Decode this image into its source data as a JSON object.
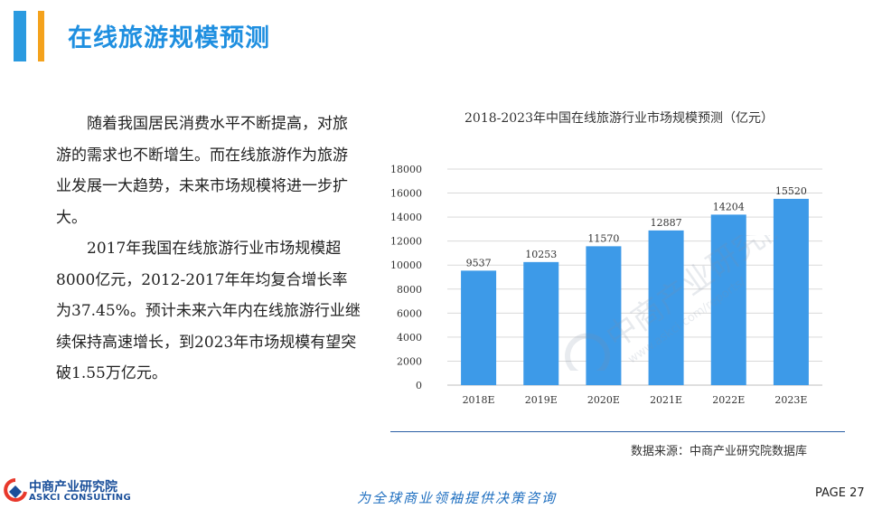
{
  "header": {
    "title": "在线旅游规模预测"
  },
  "body": {
    "paragraphs": [
      "随着我国居民消费水平不断提高，对旅游的需求也不断增生。而在线旅游作为旅游业发展一大趋势，未来市场规模将进一步扩大。",
      "2017年我国在线旅游行业市场规模超8000亿元，2012-2017年年均复合增长率为37.45%。预计未来六年内在线旅游行业继续保持高速增长，到2023年市场规模有望突破1.55万亿元。"
    ]
  },
  "chart_data": {
    "type": "bar",
    "title": "2018-2023年中国在线旅游行业市场规模预测（亿元）",
    "categories": [
      "2018E",
      "2019E",
      "2020E",
      "2021E",
      "2022E",
      "2023E"
    ],
    "values": [
      9537,
      10253,
      11570,
      12887,
      14204,
      15520
    ],
    "yticks": [
      0,
      2000,
      4000,
      6000,
      8000,
      10000,
      12000,
      14000,
      16000,
      18000
    ],
    "ylim": [
      0,
      18000
    ],
    "grid": true,
    "bar_color": "#3d9ae8",
    "data_labels": true
  },
  "source": "数据来源：中商产业研究院数据库",
  "watermark": {
    "text": "中商产业研究院",
    "url_text": "www.askci.com/reports/"
  },
  "footer": {
    "logo_cn": "中商产业研究院",
    "logo_en": "ASKCI CONSULTING",
    "slogan": "为全球商业领袖提供决策咨询",
    "page": "PAGE  27"
  },
  "colors": {
    "accent_blue": "#2a9ae0",
    "accent_orange": "#f4a21c",
    "title_blue": "#1f8fe0"
  }
}
